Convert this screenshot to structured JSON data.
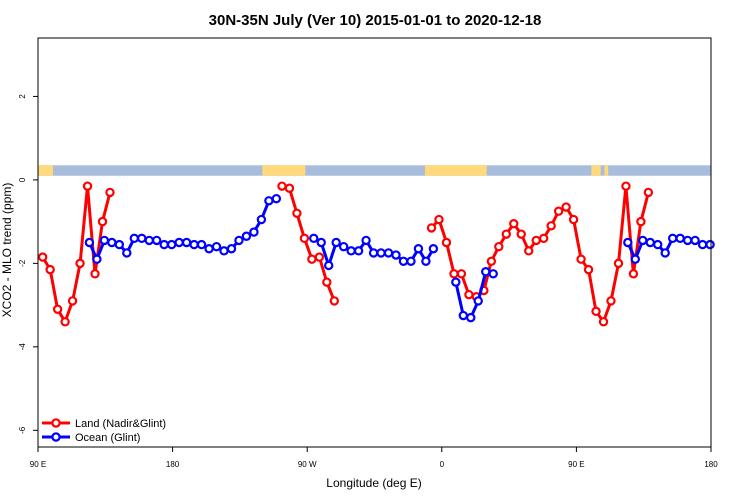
{
  "chart_data": {
    "type": "line",
    "title": "30N-35N July (Ver 10)   2015-01-01 to 2020-12-18",
    "xlabel": "Longitude (deg E)",
    "ylabel": "XCO2 - MLO trend (ppm)",
    "xlim": [
      90,
      450
    ],
    "ylim": [
      -6.4,
      3.4
    ],
    "x_ticks": [
      {
        "value": 90,
        "label": "90 E"
      },
      {
        "value": 162,
        "label": "180"
      },
      {
        "value": 234,
        "label": "90 W"
      },
      {
        "value": 306,
        "label": "0"
      },
      {
        "value": 378,
        "label": "90 E"
      },
      {
        "value": 450,
        "label": "180"
      }
    ],
    "y_ticks": [
      {
        "value": -6,
        "label": "-6"
      },
      {
        "value": -4,
        "label": "-4"
      },
      {
        "value": -2,
        "label": "-2"
      },
      {
        "value": 0,
        "label": "0"
      },
      {
        "value": 2,
        "label": "2"
      }
    ],
    "grid": false,
    "legend_position": "bottom-left",
    "land_mask": {
      "y_range": [
        0.1,
        0.35
      ],
      "land_color": "#FFD97A",
      "ocean_color": "#A8BCDB",
      "land_intervals": [
        [
          90,
          98
        ],
        [
          210,
          233
        ],
        [
          297,
          330
        ],
        [
          386,
          391
        ],
        [
          393,
          395
        ]
      ]
    },
    "series": [
      {
        "name": "Land (Nadir&Glint)",
        "color": "#FF0000",
        "segments": [
          [
            [
              92.5,
              -1.85
            ],
            [
              96.5,
              -2.15
            ],
            [
              100.5,
              -3.1
            ],
            [
              104.5,
              -3.4
            ],
            [
              108.5,
              -2.9
            ],
            [
              112.5,
              -2.0
            ],
            [
              116.5,
              -0.15
            ],
            [
              120.5,
              -2.25
            ],
            [
              124.5,
              -1.0
            ],
            [
              128.5,
              -0.3
            ]
          ],
          [
            [
              220.5,
              -0.15
            ],
            [
              224.5,
              -0.2
            ],
            [
              228.5,
              -0.8
            ],
            [
              232.5,
              -1.4
            ],
            [
              236.5,
              -1.9
            ],
            [
              240.5,
              -1.85
            ],
            [
              244.5,
              -2.45
            ],
            [
              248.5,
              -2.9
            ]
          ],
          [
            [
              300.5,
              -1.15
            ],
            [
              304.5,
              -0.95
            ],
            [
              308.5,
              -1.5
            ],
            [
              312.5,
              -2.25
            ],
            [
              316.5,
              -2.25
            ],
            [
              320.5,
              -2.75
            ],
            [
              324.5,
              -2.8
            ],
            [
              328.5,
              -2.65
            ],
            [
              332.5,
              -1.95
            ],
            [
              336.5,
              -1.6
            ],
            [
              340.5,
              -1.3
            ],
            [
              344.5,
              -1.05
            ],
            [
              348.5,
              -1.3
            ],
            [
              352.5,
              -1.7
            ],
            [
              356.5,
              -1.45
            ],
            [
              360.5,
              -1.4
            ],
            [
              364.5,
              -1.1
            ],
            [
              368.5,
              -0.75
            ],
            [
              372.5,
              -0.65
            ],
            [
              376.5,
              -0.95
            ],
            [
              380.5,
              -1.9
            ],
            [
              384.5,
              -2.15
            ],
            [
              388.5,
              -3.15
            ],
            [
              392.5,
              -3.4
            ],
            [
              396.5,
              -2.9
            ],
            [
              400.5,
              -2.0
            ],
            [
              404.5,
              -0.15
            ],
            [
              408.5,
              -2.25
            ],
            [
              412.5,
              -1.0
            ],
            [
              416.5,
              -0.3
            ]
          ]
        ]
      },
      {
        "name": "Ocean (Glint)",
        "color": "#0000FF",
        "segments": [
          [
            [
              117.5,
              -1.5
            ],
            [
              121.5,
              -1.9
            ],
            [
              125.5,
              -1.45
            ],
            [
              129.5,
              -1.5
            ],
            [
              133.5,
              -1.55
            ],
            [
              137.5,
              -1.75
            ],
            [
              141.5,
              -1.4
            ],
            [
              145.5,
              -1.4
            ],
            [
              149.5,
              -1.45
            ],
            [
              153.5,
              -1.45
            ],
            [
              157.5,
              -1.55
            ],
            [
              161.5,
              -1.55
            ],
            [
              165.5,
              -1.5
            ],
            [
              169.5,
              -1.5
            ],
            [
              173.5,
              -1.55
            ],
            [
              177.5,
              -1.55
            ],
            [
              181.5,
              -1.65
            ],
            [
              185.5,
              -1.6
            ],
            [
              189.5,
              -1.7
            ],
            [
              193.5,
              -1.65
            ],
            [
              197.5,
              -1.45
            ],
            [
              201.5,
              -1.35
            ],
            [
              205.5,
              -1.25
            ],
            [
              209.5,
              -0.95
            ],
            [
              213.5,
              -0.5
            ],
            [
              217.5,
              -0.45
            ]
          ],
          [
            [
              237.5,
              -1.4
            ],
            [
              241.5,
              -1.5
            ],
            [
              245.5,
              -2.05
            ],
            [
              249.5,
              -1.5
            ],
            [
              253.5,
              -1.6
            ],
            [
              257.5,
              -1.7
            ],
            [
              261.5,
              -1.7
            ],
            [
              265.5,
              -1.45
            ],
            [
              269.5,
              -1.75
            ],
            [
              273.5,
              -1.75
            ],
            [
              277.5,
              -1.75
            ],
            [
              281.5,
              -1.8
            ],
            [
              285.5,
              -1.95
            ],
            [
              289.5,
              -1.95
            ],
            [
              293.5,
              -1.65
            ],
            [
              297.5,
              -1.95
            ],
            [
              301.5,
              -1.65
            ]
          ],
          [
            [
              313.5,
              -2.45
            ],
            [
              317.5,
              -3.25
            ],
            [
              321.5,
              -3.3
            ],
            [
              325.5,
              -2.9
            ],
            [
              329.5,
              -2.2
            ],
            [
              333.5,
              -2.25
            ]
          ],
          [
            [
              405.5,
              -1.5
            ],
            [
              409.5,
              -1.9
            ],
            [
              413.5,
              -1.45
            ],
            [
              417.5,
              -1.5
            ],
            [
              421.5,
              -1.55
            ],
            [
              425.5,
              -1.75
            ],
            [
              429.5,
              -1.4
            ],
            [
              433.5,
              -1.4
            ],
            [
              437.5,
              -1.45
            ],
            [
              441.5,
              -1.45
            ],
            [
              445.5,
              -1.55
            ],
            [
              449.5,
              -1.55
            ]
          ]
        ]
      }
    ]
  }
}
